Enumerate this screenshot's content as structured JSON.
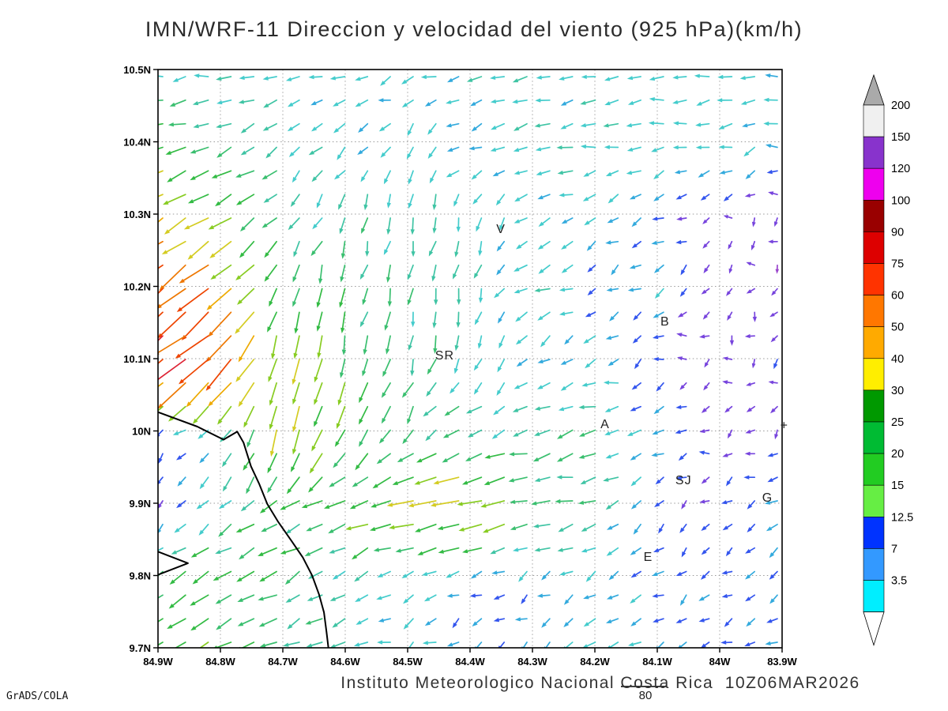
{
  "title": "IMN/WRF-11 Direccion y velocidad del viento (925 hPa)(km/h)",
  "footer": {
    "institute_line": "Instituto Meteorologico Nacional Costa Rica  10Z06MAR2026",
    "grads_stamp": "GrADS/COLA",
    "reference_vector_label": "80"
  },
  "axes": {
    "lat_ticks": [
      {
        "label": "10.5N",
        "value": 10.5
      },
      {
        "label": "10.4N",
        "value": 10.4
      },
      {
        "label": "10.3N",
        "value": 10.3
      },
      {
        "label": "10.2N",
        "value": 10.2
      },
      {
        "label": "10.1N",
        "value": 10.1
      },
      {
        "label": "10N",
        "value": 10.0
      },
      {
        "label": "9.9N",
        "value": 9.9
      },
      {
        "label": "9.8N",
        "value": 9.8
      },
      {
        "label": "9.7N",
        "value": 9.7
      }
    ],
    "lon_ticks": [
      {
        "label": "84.9W",
        "value": -84.9
      },
      {
        "label": "84.8W",
        "value": -84.8
      },
      {
        "label": "84.7W",
        "value": -84.7
      },
      {
        "label": "84.6W",
        "value": -84.6
      },
      {
        "label": "84.5W",
        "value": -84.5
      },
      {
        "label": "84.4W",
        "value": -84.4
      },
      {
        "label": "84.3W",
        "value": -84.3
      },
      {
        "label": "84.2W",
        "value": -84.2
      },
      {
        "label": "84.1W",
        "value": -84.1
      },
      {
        "label": "84W",
        "value": -84.0
      },
      {
        "label": "83.9W",
        "value": -83.9
      }
    ]
  },
  "colorbar": {
    "boundary_labels": [
      "200",
      "150",
      "120",
      "100",
      "90",
      "75",
      "60",
      "50",
      "40",
      "30",
      "25",
      "20",
      "15",
      "12.5",
      "7",
      "3.5"
    ],
    "boundary_values": [
      200,
      150,
      120,
      100,
      90,
      75,
      60,
      50,
      40,
      30,
      25,
      20,
      15,
      12.5,
      7,
      3.5
    ],
    "band_colors": [
      "#f0f0f0",
      "#8833cc",
      "#ee00ee",
      "#990000",
      "#dd0000",
      "#ff3300",
      "#ff7700",
      "#ffaa00",
      "#ffee00",
      "#009900",
      "#00bb33",
      "#22cc22",
      "#66ee44",
      "#0033ff",
      "#3399ff",
      "#00eeff"
    ],
    "over_color": "#aaaaaa",
    "under_color": "#ffffff"
  },
  "stations": [
    {
      "label": "V",
      "lon": -84.358,
      "lat": 10.274
    },
    {
      "label": "B",
      "lon": -84.095,
      "lat": 10.146
    },
    {
      "label": "SR",
      "lon": -84.456,
      "lat": 10.099
    },
    {
      "label": "A",
      "lon": -84.191,
      "lat": 10.004
    },
    {
      "label": "SJ",
      "lon": -84.071,
      "lat": 9.926
    },
    {
      "label": "G",
      "lon": -83.932,
      "lat": 9.902
    },
    {
      "label": "E",
      "lon": -84.122,
      "lat": 9.82
    },
    {
      "label": "+",
      "lon": -83.903,
      "lat": 10.002
    }
  ],
  "coastline": {
    "main": [
      [
        -84.9,
        10.026
      ],
      [
        -84.837,
        10.006
      ],
      [
        -84.795,
        9.988
      ],
      [
        -84.773,
        9.999
      ],
      [
        -84.763,
        9.984
      ],
      [
        -84.751,
        9.951
      ],
      [
        -84.738,
        9.927
      ],
      [
        -84.725,
        9.899
      ],
      [
        -84.708,
        9.875
      ],
      [
        -84.687,
        9.849
      ],
      [
        -84.668,
        9.825
      ],
      [
        -84.653,
        9.8
      ],
      [
        -84.642,
        9.774
      ],
      [
        -84.634,
        9.749
      ],
      [
        -84.63,
        9.722
      ],
      [
        -84.627,
        9.7
      ]
    ],
    "peninsula": [
      [
        -84.9,
        9.833
      ],
      [
        -84.852,
        9.817
      ],
      [
        -84.9,
        9.801
      ]
    ]
  },
  "chart_data": {
    "type": "quiver",
    "title": "IMN/WRF-11 Direccion y velocidad del viento (925 hPa)(km/h)",
    "units": "km/h",
    "level": "925 hPa",
    "valid_time": "10Z06MAR2026",
    "lon_range": [
      -84.9,
      -83.9
    ],
    "lat_range": [
      9.7,
      10.5
    ],
    "grid_lons": [
      -84.9,
      -84.8,
      -84.7,
      -84.6,
      -84.5,
      -84.4,
      -84.3,
      -84.2,
      -84.1,
      -84.0,
      -83.9
    ],
    "grid_lats": [
      10.5,
      10.4,
      10.3,
      10.2,
      10.1,
      10.0,
      9.9,
      9.8,
      9.7
    ],
    "u": [
      [
        -17,
        -16,
        -16,
        -15,
        -15,
        -16,
        -16,
        -16,
        -16,
        -15,
        -15
      ],
      [
        -28,
        -22,
        -14,
        -11,
        -9,
        -12,
        -16,
        -17,
        -17,
        -16,
        -15
      ],
      [
        -40,
        -32,
        -14,
        -8,
        -5,
        -4,
        -13,
        -15,
        -10,
        -5,
        -4
      ],
      [
        -52,
        -45,
        -10,
        -5,
        -4,
        -3,
        -18,
        -8,
        -10,
        -5,
        -5
      ],
      [
        -68,
        -52,
        -8,
        -6,
        -5,
        -6,
        -10,
        -14,
        -6,
        -5,
        -6
      ],
      [
        -8,
        -10,
        -10,
        -12,
        -15,
        -18,
        -22,
        -20,
        -12,
        -6,
        -5
      ],
      [
        -6,
        -14,
        -22,
        -28,
        -38,
        -48,
        -25,
        -18,
        -8,
        -6,
        -12
      ],
      [
        -20,
        -24,
        -22,
        -16,
        -14,
        -12,
        -10,
        -12,
        -10,
        -8,
        -10
      ],
      [
        -26,
        -28,
        -20,
        -15,
        -12,
        -10,
        -8,
        -14,
        -12,
        -8,
        -10
      ]
    ],
    "v": [
      [
        -2,
        -2,
        -3,
        -3,
        -3,
        -2,
        -2,
        -2,
        -2,
        -2,
        -2
      ],
      [
        -10,
        -8,
        -9,
        -11,
        -12,
        -8,
        -4,
        -3,
        -3,
        -3,
        -3
      ],
      [
        -25,
        -20,
        -16,
        -18,
        -20,
        -16,
        -7,
        -5,
        -4,
        -3,
        -3
      ],
      [
        -40,
        -35,
        -28,
        -24,
        -20,
        -18,
        -6,
        -4,
        -8,
        -4,
        -4
      ],
      [
        -58,
        -42,
        -42,
        -30,
        -22,
        -18,
        -10,
        -8,
        -5,
        -4,
        -4
      ],
      [
        -6,
        -12,
        -38,
        -28,
        -18,
        -10,
        -6,
        -5,
        -4,
        -3,
        -3
      ],
      [
        -5,
        -12,
        -14,
        -10,
        -8,
        -8,
        -5,
        -6,
        -5,
        -4,
        -6
      ],
      [
        -14,
        -16,
        -12,
        -10,
        -8,
        -8,
        -6,
        -8,
        -8,
        -5,
        -6
      ],
      [
        -16,
        -14,
        -10,
        -8,
        -6,
        -5,
        -5,
        -8,
        -6,
        -4,
        -5
      ]
    ],
    "arrow_color_scale": [
      {
        "max": 5,
        "color": "#9a44cc"
      },
      {
        "max": 8,
        "color": "#7744dd"
      },
      {
        "max": 11,
        "color": "#3355ee"
      },
      {
        "max": 14,
        "color": "#33aadd"
      },
      {
        "max": 18,
        "color": "#44cccc"
      },
      {
        "max": 22,
        "color": "#3fc4a4"
      },
      {
        "max": 27,
        "color": "#3abf6f"
      },
      {
        "max": 33,
        "color": "#33bb44"
      },
      {
        "max": 40,
        "color": "#88cc22"
      },
      {
        "max": 47,
        "color": "#d4cc22"
      },
      {
        "max": 55,
        "color": "#eeaa00"
      },
      {
        "max": 65,
        "color": "#ee7700"
      },
      {
        "max": 78,
        "color": "#ee4400"
      },
      {
        "max": 92,
        "color": "#dd2233"
      },
      {
        "max": 9999,
        "color": "#ee22aa"
      }
    ],
    "reference_vector": {
      "label": "80",
      "value": 80
    }
  }
}
